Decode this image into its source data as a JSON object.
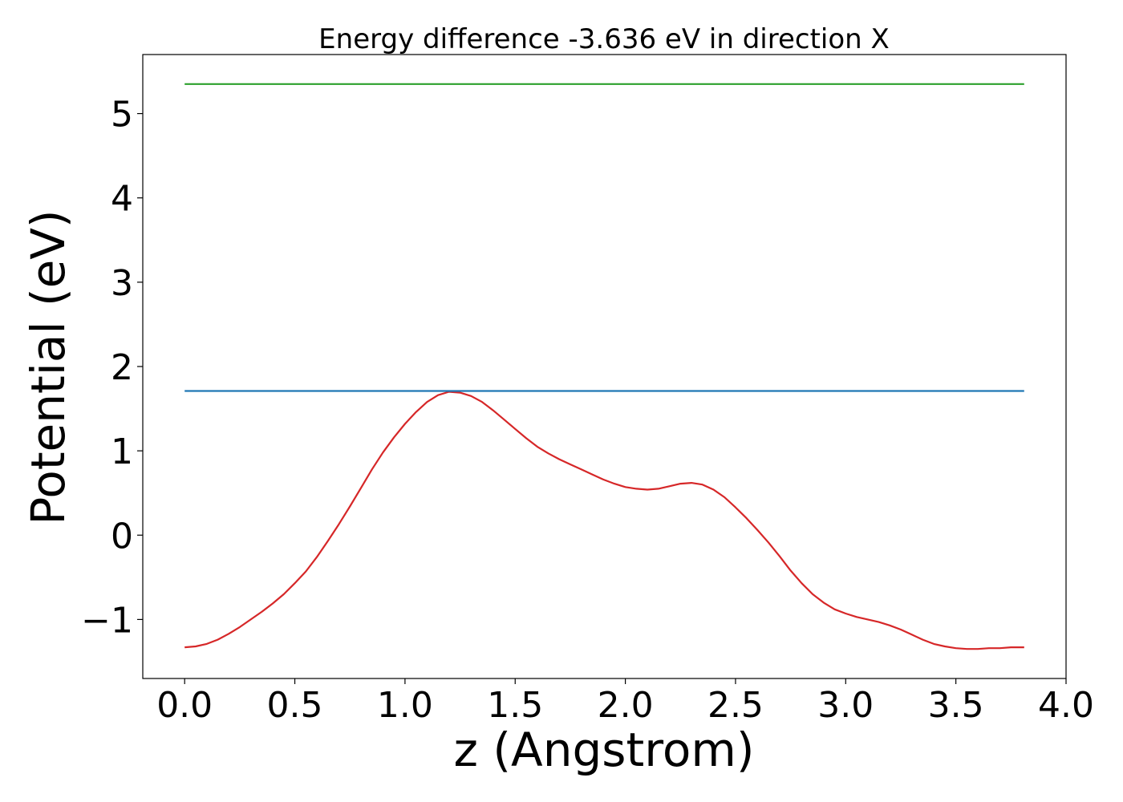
{
  "chart_data": {
    "type": "line",
    "title": "Energy difference -3.636 eV in direction X",
    "xlabel": "z (Angstrom)",
    "ylabel": "Potential (eV)",
    "xlim": [
      -0.19,
      4.0
    ],
    "ylim": [
      -1.7,
      5.7
    ],
    "xticks": [
      0.0,
      0.5,
      1.0,
      1.5,
      2.0,
      2.5,
      3.0,
      3.5,
      4.0
    ],
    "xtick_labels": [
      "0.0",
      "0.5",
      "1.0",
      "1.5",
      "2.0",
      "2.5",
      "3.0",
      "3.5",
      "4.0"
    ],
    "yticks": [
      -1,
      0,
      1,
      2,
      3,
      4,
      5
    ],
    "ytick_labels": [
      "−1",
      "0",
      "1",
      "2",
      "3",
      "4",
      "5"
    ],
    "grid": false,
    "legend": "none",
    "series": [
      {
        "color": "#d62728",
        "x": [
          0.0,
          0.05,
          0.1,
          0.15,
          0.2,
          0.25,
          0.3,
          0.35,
          0.4,
          0.45,
          0.5,
          0.55,
          0.6,
          0.65,
          0.7,
          0.75,
          0.8,
          0.85,
          0.9,
          0.95,
          1.0,
          1.05,
          1.1,
          1.15,
          1.2,
          1.25,
          1.3,
          1.35,
          1.4,
          1.45,
          1.5,
          1.55,
          1.6,
          1.65,
          1.7,
          1.75,
          1.8,
          1.85,
          1.9,
          1.95,
          2.0,
          2.05,
          2.1,
          2.15,
          2.2,
          2.25,
          2.3,
          2.35,
          2.4,
          2.45,
          2.5,
          2.55,
          2.6,
          2.65,
          2.7,
          2.75,
          2.8,
          2.85,
          2.9,
          2.95,
          3.0,
          3.05,
          3.1,
          3.15,
          3.2,
          3.25,
          3.3,
          3.35,
          3.4,
          3.45,
          3.5,
          3.55,
          3.6,
          3.65,
          3.7,
          3.75,
          3.81
        ],
        "y": [
          -1.33,
          -1.32,
          -1.29,
          -1.24,
          -1.17,
          -1.09,
          -1.0,
          -0.91,
          -0.81,
          -0.7,
          -0.57,
          -0.43,
          -0.26,
          -0.07,
          0.13,
          0.34,
          0.56,
          0.78,
          0.98,
          1.16,
          1.32,
          1.46,
          1.58,
          1.66,
          1.7,
          1.69,
          1.65,
          1.58,
          1.48,
          1.37,
          1.26,
          1.15,
          1.05,
          0.97,
          0.9,
          0.84,
          0.78,
          0.72,
          0.66,
          0.61,
          0.57,
          0.55,
          0.54,
          0.55,
          0.58,
          0.61,
          0.62,
          0.6,
          0.54,
          0.45,
          0.33,
          0.2,
          0.06,
          -0.09,
          -0.25,
          -0.42,
          -0.57,
          -0.7,
          -0.8,
          -0.88,
          -0.93,
          -0.97,
          -1.0,
          -1.03,
          -1.07,
          -1.12,
          -1.18,
          -1.24,
          -1.29,
          -1.32,
          -1.34,
          -1.35,
          -1.35,
          -1.34,
          -1.34,
          -1.33,
          -1.33
        ]
      },
      {
        "color": "#1f77b4",
        "x": [
          0.0,
          3.81
        ],
        "y": [
          1.71,
          1.71
        ]
      },
      {
        "color": "#2ca02c",
        "x": [
          0.0,
          3.81
        ],
        "y": [
          5.35,
          5.35
        ]
      }
    ]
  }
}
